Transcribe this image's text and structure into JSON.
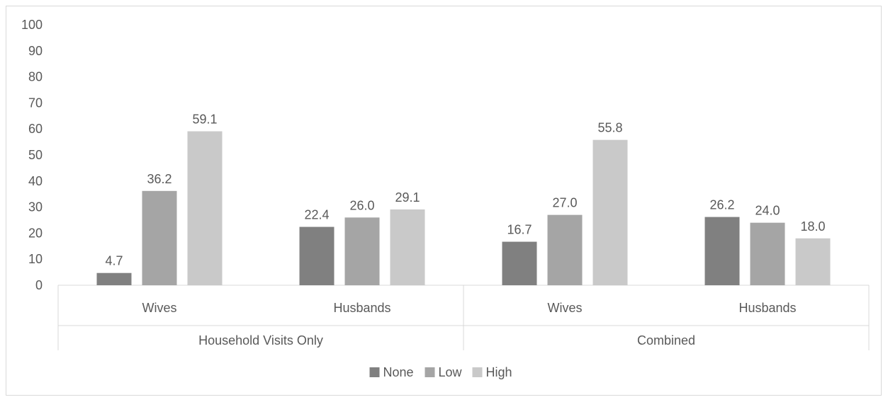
{
  "chart_data": {
    "type": "bar",
    "title": "",
    "xlabel": "",
    "ylabel": "",
    "ylim": [
      0,
      100
    ],
    "yticks": [
      0,
      10,
      20,
      30,
      40,
      50,
      60,
      70,
      80,
      90,
      100
    ],
    "groups": [
      {
        "label": "Household Visits Only",
        "categories": [
          "Wives",
          "Husbands"
        ]
      },
      {
        "label": "Combined",
        "categories": [
          "Wives",
          "Husbands"
        ]
      }
    ],
    "categories": [
      "Wives",
      "Husbands",
      "Wives",
      "Husbands"
    ],
    "series": [
      {
        "name": "None",
        "color": "#808080",
        "values": [
          4.7,
          22.4,
          16.7,
          26.2
        ]
      },
      {
        "name": "Low",
        "color": "#a5a5a5",
        "values": [
          36.2,
          26.0,
          27.0,
          24.0
        ]
      },
      {
        "name": "High",
        "color": "#c9c9c9",
        "values": [
          59.1,
          29.1,
          55.8,
          18.0
        ]
      }
    ],
    "data_labels": true,
    "decimals": 1,
    "grid": false,
    "legend_position": "bottom"
  }
}
